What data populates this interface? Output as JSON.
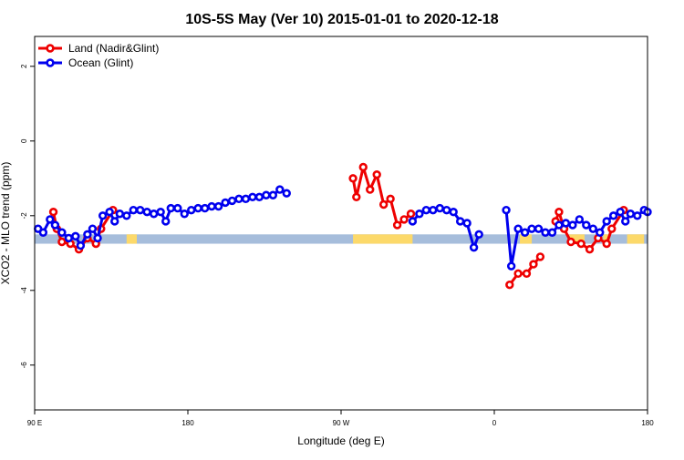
{
  "chart_data": {
    "type": "line",
    "title": "10S-5S May (Ver 10)   2015-01-01 to 2020-12-18",
    "xlabel": "Longitude (deg E)",
    "ylabel": "XCO2 - MLO trend (ppm)",
    "xlim": [
      90,
      450
    ],
    "ylim": [
      -7.2,
      2.8
    ],
    "x_ticks": [
      {
        "value": 90,
        "label": "90 E"
      },
      {
        "value": 180,
        "label": "180"
      },
      {
        "value": 270,
        "label": "90 W"
      },
      {
        "value": 360,
        "label": "0"
      },
      {
        "value": 450,
        "label": "180"
      }
    ],
    "y_ticks": [
      {
        "value": 2,
        "label": "2"
      },
      {
        "value": 0,
        "label": "0"
      },
      {
        "value": -2,
        "label": "-2"
      },
      {
        "value": -4,
        "label": "-4"
      },
      {
        "value": -6,
        "label": "-6"
      }
    ],
    "legend_position": "top-left",
    "land_ocean_strip": {
      "y_range": [
        -2.75,
        -2.5
      ],
      "ocean_color": "#a6bddb",
      "land_color": "#fcd96a",
      "land_segments": [
        [
          144,
          148
        ],
        [
          147,
          150
        ],
        [
          277,
          312
        ],
        [
          375,
          382
        ],
        [
          404,
          413
        ],
        [
          424,
          428
        ],
        [
          438,
          448
        ]
      ]
    },
    "series": [
      {
        "name": "Land (Nadir&Glint)",
        "color": "#ee0000",
        "segments": [
          [
            [
              101,
              -1.9
            ],
            [
              103,
              -2.35
            ],
            [
              106,
              -2.7
            ],
            [
              111,
              -2.75
            ],
            [
              116,
              -2.9
            ],
            [
              121,
              -2.6
            ],
            [
              126,
              -2.75
            ],
            [
              129,
              -2.35
            ],
            [
              136,
              -1.85
            ]
          ],
          [
            [
              277,
              -1.0
            ],
            [
              279,
              -1.5
            ],
            [
              283,
              -0.7
            ],
            [
              287,
              -1.3
            ],
            [
              291,
              -0.9
            ],
            [
              295,
              -1.7
            ],
            [
              299,
              -1.55
            ],
            [
              303,
              -2.25
            ],
            [
              307,
              -2.1
            ],
            [
              311,
              -1.95
            ]
          ],
          [
            [
              369,
              -3.85
            ],
            [
              374,
              -3.55
            ],
            [
              379,
              -3.55
            ],
            [
              383,
              -3.3
            ],
            [
              387,
              -3.1
            ]
          ],
          [
            [
              396,
              -2.15
            ],
            [
              398,
              -1.9
            ],
            [
              401,
              -2.35
            ],
            [
              405,
              -2.7
            ],
            [
              411,
              -2.75
            ],
            [
              416,
              -2.9
            ],
            [
              421,
              -2.6
            ],
            [
              426,
              -2.75
            ],
            [
              429,
              -2.35
            ],
            [
              436,
              -1.85
            ]
          ]
        ]
      },
      {
        "name": "Ocean (Glint)",
        "color": "#0000ee",
        "segments": [
          [
            [
              92,
              -2.35
            ],
            [
              95,
              -2.45
            ],
            [
              99,
              -2.1
            ],
            [
              102,
              -2.25
            ],
            [
              106,
              -2.45
            ],
            [
              110,
              -2.6
            ],
            [
              114,
              -2.55
            ],
            [
              117,
              -2.8
            ],
            [
              121,
              -2.5
            ],
            [
              124,
              -2.35
            ],
            [
              127,
              -2.6
            ],
            [
              130,
              -2.0
            ],
            [
              134,
              -1.9
            ],
            [
              137,
              -2.15
            ],
            [
              140,
              -1.95
            ],
            [
              144,
              -2.0
            ],
            [
              148,
              -1.85
            ],
            [
              152,
              -1.85
            ],
            [
              156,
              -1.9
            ],
            [
              160,
              -1.95
            ],
            [
              164,
              -1.9
            ],
            [
              167,
              -2.15
            ],
            [
              170,
              -1.8
            ],
            [
              174,
              -1.8
            ],
            [
              178,
              -1.95
            ],
            [
              182,
              -1.85
            ],
            [
              186,
              -1.8
            ],
            [
              190,
              -1.8
            ],
            [
              194,
              -1.75
            ],
            [
              198,
              -1.75
            ],
            [
              202,
              -1.65
            ],
            [
              206,
              -1.6
            ],
            [
              210,
              -1.55
            ],
            [
              214,
              -1.55
            ],
            [
              218,
              -1.5
            ],
            [
              222,
              -1.5
            ],
            [
              226,
              -1.45
            ],
            [
              230,
              -1.45
            ],
            [
              234,
              -1.3
            ],
            [
              238,
              -1.4
            ]
          ],
          [
            [
              312,
              -2.15
            ],
            [
              316,
              -1.95
            ],
            [
              320,
              -1.85
            ],
            [
              324,
              -1.85
            ],
            [
              328,
              -1.8
            ],
            [
              332,
              -1.85
            ],
            [
              336,
              -1.9
            ],
            [
              340,
              -2.15
            ],
            [
              344,
              -2.2
            ],
            [
              348,
              -2.85
            ],
            [
              351,
              -2.5
            ]
          ],
          [
            [
              367,
              -1.85
            ],
            [
              370,
              -3.35
            ],
            [
              374,
              -2.35
            ],
            [
              378,
              -2.45
            ],
            [
              382,
              -2.35
            ],
            [
              386,
              -2.35
            ],
            [
              390,
              -2.45
            ],
            [
              394,
              -2.45
            ],
            [
              398,
              -2.25
            ],
            [
              402,
              -2.2
            ],
            [
              406,
              -2.25
            ],
            [
              410,
              -2.1
            ],
            [
              414,
              -2.25
            ],
            [
              418,
              -2.35
            ],
            [
              422,
              -2.45
            ],
            [
              426,
              -2.15
            ],
            [
              430,
              -2.0
            ],
            [
              434,
              -1.9
            ],
            [
              437,
              -2.15
            ],
            [
              440,
              -1.95
            ],
            [
              444,
              -2.0
            ],
            [
              448,
              -1.85
            ],
            [
              450,
              -1.9
            ]
          ]
        ]
      }
    ]
  }
}
